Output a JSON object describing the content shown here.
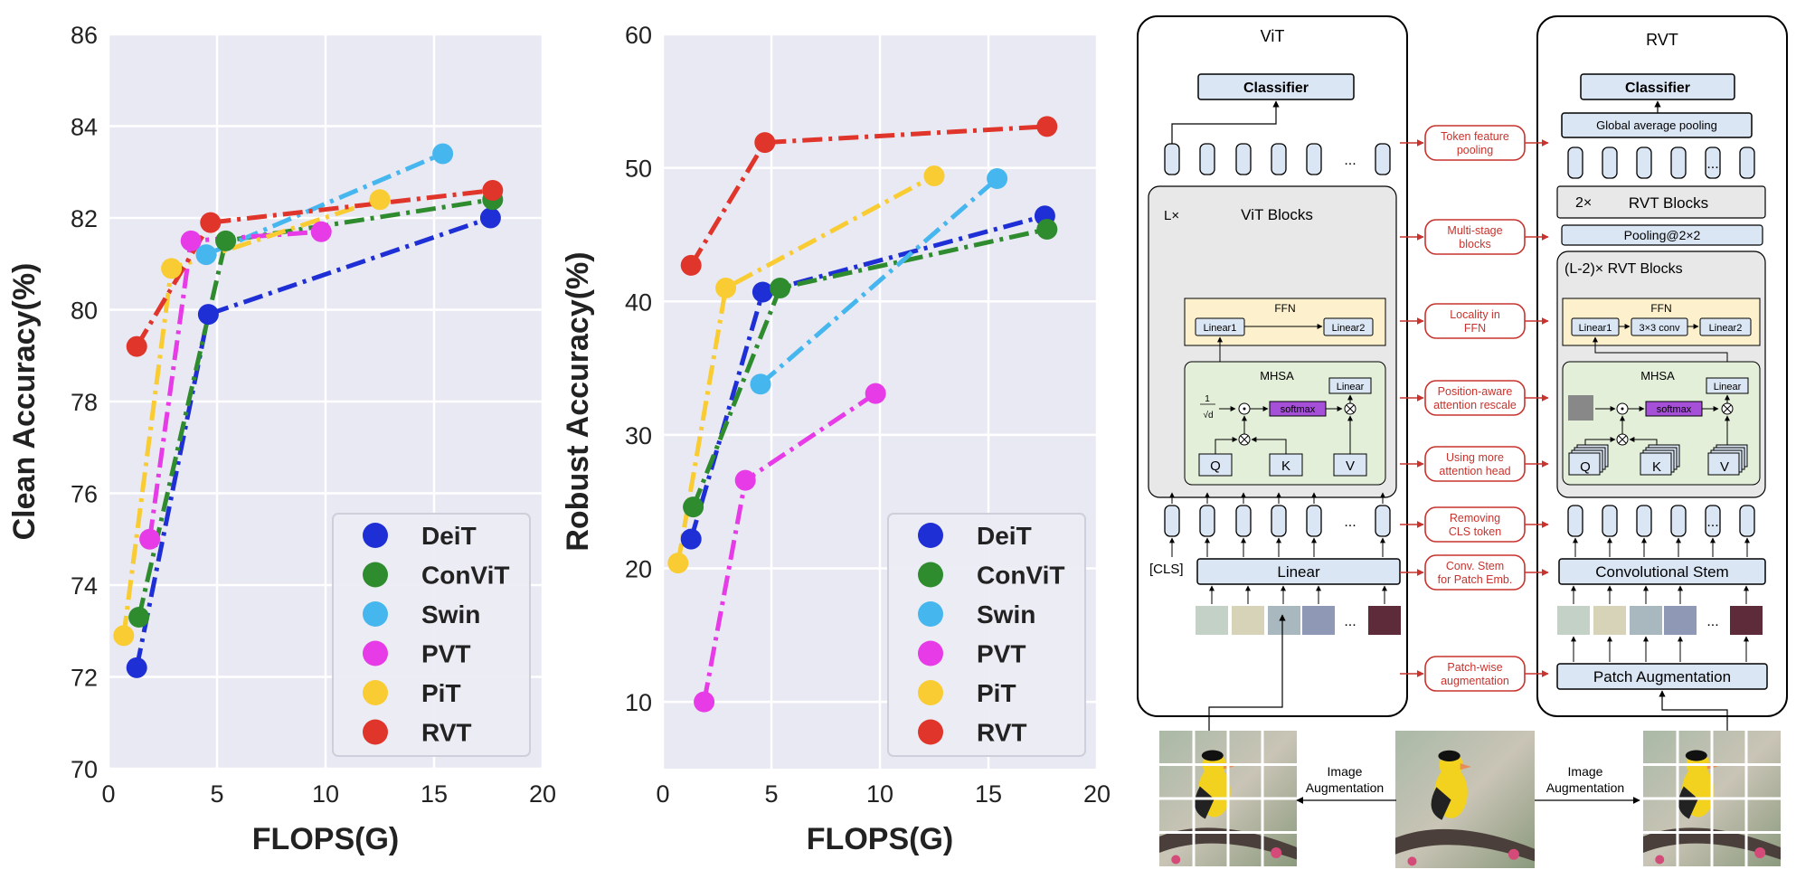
{
  "chart_data": [
    {
      "type": "line",
      "xlabel": "FLOPS(G)",
      "ylabel": "Clean Accuracy(%)",
      "xlim": [
        0,
        20
      ],
      "ylim": [
        70,
        86
      ],
      "x_ticks": [
        "0",
        "5",
        "10",
        "15",
        "20"
      ],
      "y_ticks": [
        "70",
        "72",
        "74",
        "76",
        "78",
        "80",
        "82",
        "84",
        "86"
      ],
      "legend_position": "lower-right",
      "series": [
        {
          "name": "DeiT",
          "color": "#1f2fd6",
          "points": [
            [
              1.3,
              72.2
            ],
            [
              4.6,
              79.9
            ],
            [
              17.6,
              82.0
            ]
          ]
        },
        {
          "name": "ConViT",
          "color": "#2e8b2e",
          "points": [
            [
              1.4,
              73.3
            ],
            [
              5.4,
              81.5
            ],
            [
              17.7,
              82.4
            ]
          ]
        },
        {
          "name": "Swin",
          "color": "#46b6ee",
          "points": [
            [
              4.5,
              81.2
            ],
            [
              15.4,
              83.4
            ]
          ]
        },
        {
          "name": "PVT",
          "color": "#e63be6",
          "points": [
            [
              1.9,
              75.0
            ],
            [
              3.8,
              81.5
            ],
            [
              9.8,
              81.7
            ]
          ]
        },
        {
          "name": "PiT",
          "color": "#f8cc32",
          "points": [
            [
              0.7,
              72.9
            ],
            [
              2.9,
              80.9
            ],
            [
              12.5,
              82.4
            ]
          ]
        },
        {
          "name": "RVT",
          "color": "#e0352a",
          "points": [
            [
              1.3,
              79.2
            ],
            [
              4.7,
              81.9
            ],
            [
              17.7,
              82.6
            ]
          ]
        }
      ]
    },
    {
      "type": "line",
      "xlabel": "FLOPS(G)",
      "ylabel": "Robust Accuracy(%)",
      "xlim": [
        0,
        20
      ],
      "ylim": [
        5,
        60
      ],
      "x_ticks": [
        "0",
        "5",
        "10",
        "15",
        "20"
      ],
      "y_ticks": [
        "10",
        "20",
        "30",
        "40",
        "50",
        "60"
      ],
      "legend_position": "lower-right",
      "series": [
        {
          "name": "DeiT",
          "color": "#1f2fd6",
          "points": [
            [
              1.3,
              22.2
            ],
            [
              4.6,
              40.7
            ],
            [
              17.6,
              46.4
            ]
          ]
        },
        {
          "name": "ConViT",
          "color": "#2e8b2e",
          "points": [
            [
              1.4,
              24.6
            ],
            [
              5.4,
              41.0
            ],
            [
              17.7,
              45.4
            ]
          ]
        },
        {
          "name": "Swin",
          "color": "#46b6ee",
          "points": [
            [
              4.5,
              33.8
            ],
            [
              15.4,
              49.2
            ]
          ]
        },
        {
          "name": "PVT",
          "color": "#e63be6",
          "points": [
            [
              1.9,
              10.0
            ],
            [
              3.8,
              26.6
            ],
            [
              9.8,
              33.1
            ]
          ]
        },
        {
          "name": "PiT",
          "color": "#f8cc32",
          "points": [
            [
              0.7,
              20.4
            ],
            [
              2.9,
              41.0
            ],
            [
              12.5,
              49.4
            ]
          ]
        },
        {
          "name": "RVT",
          "color": "#e0352a",
          "points": [
            [
              1.3,
              42.7
            ],
            [
              4.7,
              51.9
            ],
            [
              17.7,
              53.1
            ]
          ]
        }
      ]
    }
  ],
  "diagram": {
    "vit": {
      "title": "ViT",
      "classifier": "Classifier",
      "blocks_mult": "L×",
      "blocks_title": "ViT Blocks",
      "ffn": "FFN",
      "linear1": "Linear1",
      "linear2": "Linear2",
      "mhsa": "MHSA",
      "linear": "Linear",
      "scale_num": "1",
      "scale_den": "√d",
      "softmax": "softmax",
      "q": "Q",
      "k": "K",
      "v": "V",
      "cls": "[CLS]",
      "embed": "Linear",
      "dots": "..."
    },
    "rvt": {
      "title": "RVT",
      "classifier": "Classifier",
      "gap": "Global average pooling",
      "blocks_mult": "2×",
      "blocks_title": "RVT Blocks",
      "pooling": "Pooling@2×2",
      "blocks2": "(L-2)× RVT Blocks",
      "ffn": "FFN",
      "linear1": "Linear1",
      "conv": "3×3 conv",
      "linear2": "Linear2",
      "mhsa": "MHSA",
      "linear": "Linear",
      "softmax": "softmax",
      "q": "Q",
      "k": "K",
      "v": "V",
      "stem": "Convolutional Stem",
      "patch_aug": "Patch Augmentation",
      "dots": "..."
    },
    "changes": [
      [
        "Token feature",
        "pooling"
      ],
      [
        "Multi-stage",
        "blocks"
      ],
      [
        "Locality in",
        "FFN"
      ],
      [
        "Position-aware",
        "attention rescale"
      ],
      [
        "Using more",
        "attention head"
      ],
      [
        "Removing",
        "CLS token"
      ],
      [
        "Conv. Stem",
        "for Patch Emb."
      ],
      [
        "Patch-wise",
        "augmentation"
      ]
    ],
    "image_aug": [
      "Image",
      "Augmentation"
    ],
    "colors": {
      "red": "#c8332d",
      "blue_fill": "#dbe6f5",
      "gray_fill": "#e8e8e8",
      "green_fill": "#e3efd9",
      "yellow_fill": "#fdf0cc",
      "purple": "#a64fd8"
    }
  }
}
